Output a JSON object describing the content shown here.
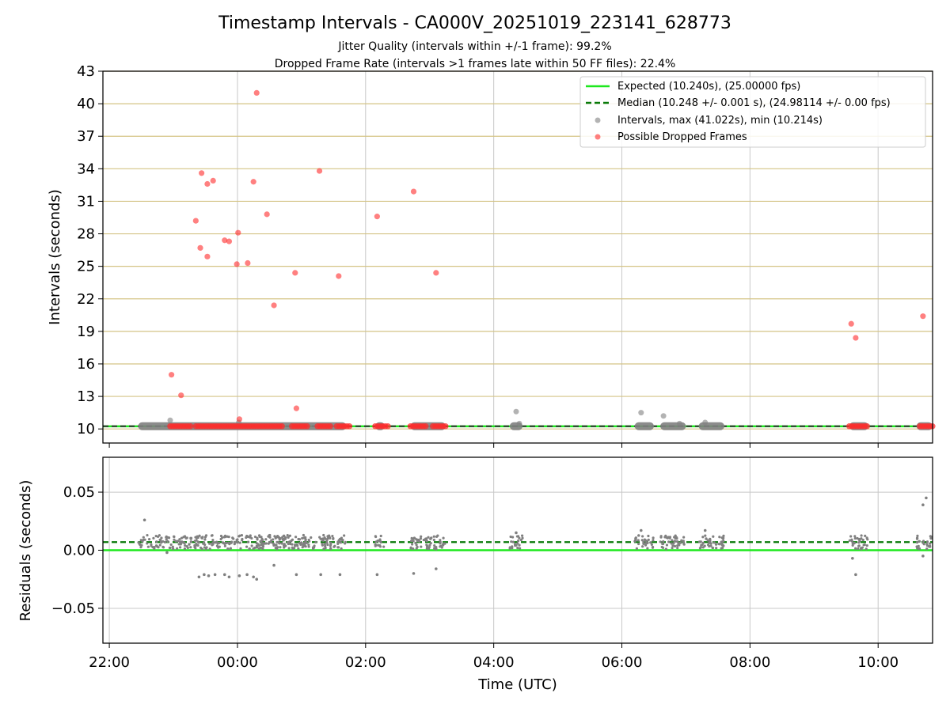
{
  "chart_data": [
    {
      "type": "scatter",
      "title": "Timestamp Intervals - CA000V_20251019_223141_628773",
      "subtitle_1": "Jitter Quality (intervals within +/-1 frame): 99.2%",
      "subtitle_2": "Dropped Frame Rate (intervals >1 frames late within 50 FF files): 22.4%",
      "xlabel": "",
      "ylabel": "Intervals (seconds)",
      "xlim": [
        -2.1,
        10.85
      ],
      "ylim": [
        8.7,
        43
      ],
      "yticks": [
        10,
        13,
        16,
        19,
        22,
        25,
        28,
        31,
        34,
        37,
        40,
        43
      ],
      "ytick_labels": [
        "10",
        "13",
        "16",
        "19",
        "22",
        "25",
        "28",
        "31",
        "34",
        "37",
        "40",
        "43"
      ],
      "xgrid_hours": [
        0,
        2,
        4,
        6,
        8,
        10
      ],
      "expected_interval": 10.24,
      "median_interval": 10.248,
      "colors": {
        "expected": "#1ee81e",
        "median": "#0a7a0a",
        "intervals": "#808080",
        "dropped": "#ff2b2b",
        "hgrid": "#d4c486",
        "vgrid": "#c8c8c8"
      },
      "legend": {
        "position": "upper right",
        "entries": [
          "Expected (10.240s), (25.00000 fps)",
          "Median (10.248 +/- 0.001 s), (24.98114 +/- 0.00 fps)",
          "Intervals, max (41.022s), min (10.214s)",
          "Possible Dropped Frames"
        ]
      },
      "interval_clusters_hours": [
        [
          -1.55,
          1.7
        ],
        [
          2.15,
          2.3
        ],
        [
          2.7,
          3.25
        ],
        [
          4.25,
          4.45
        ],
        [
          6.2,
          6.5
        ],
        [
          6.6,
          7.0
        ],
        [
          7.2,
          7.6
        ],
        [
          9.55,
          9.85
        ],
        [
          10.6,
          10.85
        ]
      ],
      "interval_highlights": [
        {
          "t": -1.05,
          "y": 10.8
        },
        {
          "t": 0.02,
          "y": 10.6
        },
        {
          "t": 4.35,
          "y": 11.6
        },
        {
          "t": 4.4,
          "y": 10.5
        },
        {
          "t": 6.3,
          "y": 11.5
        },
        {
          "t": 6.65,
          "y": 11.2
        },
        {
          "t": 6.9,
          "y": 10.5
        },
        {
          "t": 7.3,
          "y": 10.6
        }
      ],
      "dropped_band_segments_hours": [
        [
          -1.05,
          -0.7
        ],
        [
          -0.65,
          0.7
        ],
        [
          0.85,
          1.1
        ],
        [
          1.25,
          1.45
        ],
        [
          1.55,
          1.75
        ],
        [
          2.15,
          2.35
        ],
        [
          2.7,
          2.95
        ],
        [
          3.05,
          3.25
        ],
        [
          9.55,
          9.85
        ],
        [
          10.65,
          10.85
        ]
      ],
      "dropped_frames": [
        {
          "t": -1.03,
          "y": 15.0
        },
        {
          "t": -0.88,
          "y": 13.1
        },
        {
          "t": -0.65,
          "y": 29.2
        },
        {
          "t": -0.56,
          "y": 33.6
        },
        {
          "t": -0.58,
          "y": 26.7
        },
        {
          "t": -0.47,
          "y": 32.6
        },
        {
          "t": -0.47,
          "y": 25.9
        },
        {
          "t": -0.38,
          "y": 32.9
        },
        {
          "t": -0.2,
          "y": 27.4
        },
        {
          "t": -0.13,
          "y": 27.3
        },
        {
          "t": 0.01,
          "y": 28.1
        },
        {
          "t": -0.01,
          "y": 25.2
        },
        {
          "t": 0.03,
          "y": 10.9
        },
        {
          "t": 0.16,
          "y": 25.3
        },
        {
          "t": 0.25,
          "y": 32.8
        },
        {
          "t": 0.3,
          "y": 41.0
        },
        {
          "t": 0.46,
          "y": 29.8
        },
        {
          "t": 0.57,
          "y": 21.4
        },
        {
          "t": 0.9,
          "y": 24.4
        },
        {
          "t": 0.92,
          "y": 11.9
        },
        {
          "t": 1.28,
          "y": 33.8
        },
        {
          "t": 1.58,
          "y": 24.1
        },
        {
          "t": 2.18,
          "y": 29.6
        },
        {
          "t": 2.75,
          "y": 31.9
        },
        {
          "t": 3.1,
          "y": 24.4
        },
        {
          "t": 9.58,
          "y": 19.7
        },
        {
          "t": 9.65,
          "y": 18.4
        },
        {
          "t": 10.7,
          "y": 20.4
        }
      ]
    },
    {
      "type": "scatter",
      "title": "",
      "xlabel": "Time (UTC)",
      "ylabel": "Residuals (seconds)",
      "xlim": [
        -2.1,
        10.85
      ],
      "ylim": [
        -0.08,
        0.08
      ],
      "yticks": [
        0.05,
        0.0,
        -0.05
      ],
      "ytick_labels": [
        "0.05",
        "0.00",
        "−0.05"
      ],
      "xticks": [
        -2,
        0,
        2,
        4,
        6,
        8,
        10
      ],
      "xtick_labels": [
        "22:00",
        "00:00",
        "02:00",
        "04:00",
        "06:00",
        "08:00",
        "10:00"
      ],
      "expected_residual": 0.0,
      "median_residual": 0.007,
      "residual_clusters_hours": [
        [
          -1.55,
          1.7
        ],
        [
          2.15,
          2.3
        ],
        [
          2.7,
          3.25
        ],
        [
          4.25,
          4.45
        ],
        [
          6.2,
          6.5
        ],
        [
          6.6,
          7.0
        ],
        [
          7.2,
          7.6
        ],
        [
          9.55,
          9.85
        ],
        [
          10.6,
          10.85
        ]
      ],
      "residual_outliers": [
        {
          "t": -1.45,
          "y": 0.026
        },
        {
          "t": -1.1,
          "y": -0.002
        },
        {
          "t": -0.6,
          "y": -0.023
        },
        {
          "t": -0.52,
          "y": -0.021
        },
        {
          "t": -0.45,
          "y": -0.022
        },
        {
          "t": -0.35,
          "y": -0.021
        },
        {
          "t": -0.2,
          "y": -0.021
        },
        {
          "t": -0.13,
          "y": -0.023
        },
        {
          "t": 0.03,
          "y": -0.022
        },
        {
          "t": 0.15,
          "y": -0.021
        },
        {
          "t": 0.25,
          "y": -0.023
        },
        {
          "t": 0.3,
          "y": -0.025
        },
        {
          "t": 0.57,
          "y": -0.013
        },
        {
          "t": 0.92,
          "y": -0.021
        },
        {
          "t": 1.3,
          "y": -0.021
        },
        {
          "t": 1.6,
          "y": -0.021
        },
        {
          "t": 2.18,
          "y": -0.021
        },
        {
          "t": 2.75,
          "y": -0.02
        },
        {
          "t": 3.1,
          "y": -0.016
        },
        {
          "t": 9.6,
          "y": -0.007
        },
        {
          "t": 9.65,
          "y": -0.021
        },
        {
          "t": 10.7,
          "y": -0.005
        },
        {
          "t": 10.7,
          "y": 0.039
        },
        {
          "t": 10.75,
          "y": 0.045
        },
        {
          "t": 6.3,
          "y": 0.017
        },
        {
          "t": 7.3,
          "y": 0.017
        },
        {
          "t": 4.35,
          "y": 0.015
        }
      ]
    }
  ]
}
